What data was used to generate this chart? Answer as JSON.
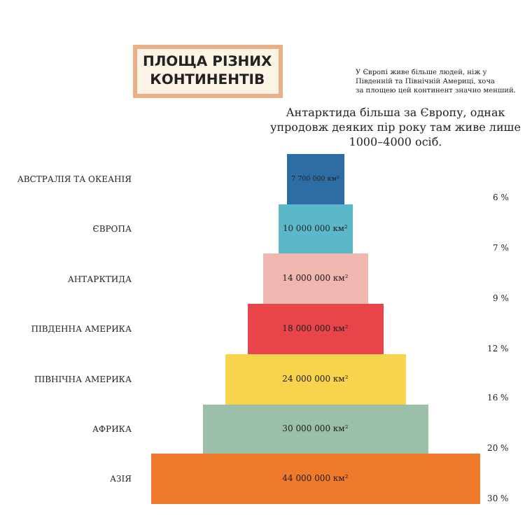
{
  "chart_data": {
    "type": "other",
    "title": "ПЛОЩА РІЗНИХ КОНТИНЕНТІВ",
    "subtitle": "У Європі живе більше людей, ніж у Південній та Північній Америці, хоча за площею цей континент значно менший.",
    "categories": [
      "АВСТРАЛІЯ ТА ОКЕАНІЯ",
      "ЄВРОПА",
      "АНТАРКТИДА",
      "ПІВДЕННА АМЕРИКА",
      "ПІВНІЧНА АМЕРИКА",
      "АФРИКА",
      "АЗІЯ"
    ],
    "values": [
      7700000,
      10000000,
      14000000,
      18000000,
      24000000,
      30000000,
      44000000
    ],
    "colors": [
      "#2e6da4",
      "#5bb8c8",
      "#f0b6b0",
      "#e8454a",
      "#f8d44c",
      "#9bbfa8",
      "#f07a2c"
    ],
    "value_labels": [
      "7 700 000 км²",
      "10 000 000 км²",
      "14 000 000 км²",
      "18 000 000 км²",
      "24 000 000 км²",
      "30 000 000 км²",
      "44 000 000 км²"
    ],
    "annotations": [
      "Антарктида більша за Європу, однак упродовж деяких пір року там живе лише 1000–4000 осіб.",
      "6 %",
      "7 %",
      "9 %",
      "12 %",
      "16 %",
      "20 %",
      "30 %"
    ]
  }
}
